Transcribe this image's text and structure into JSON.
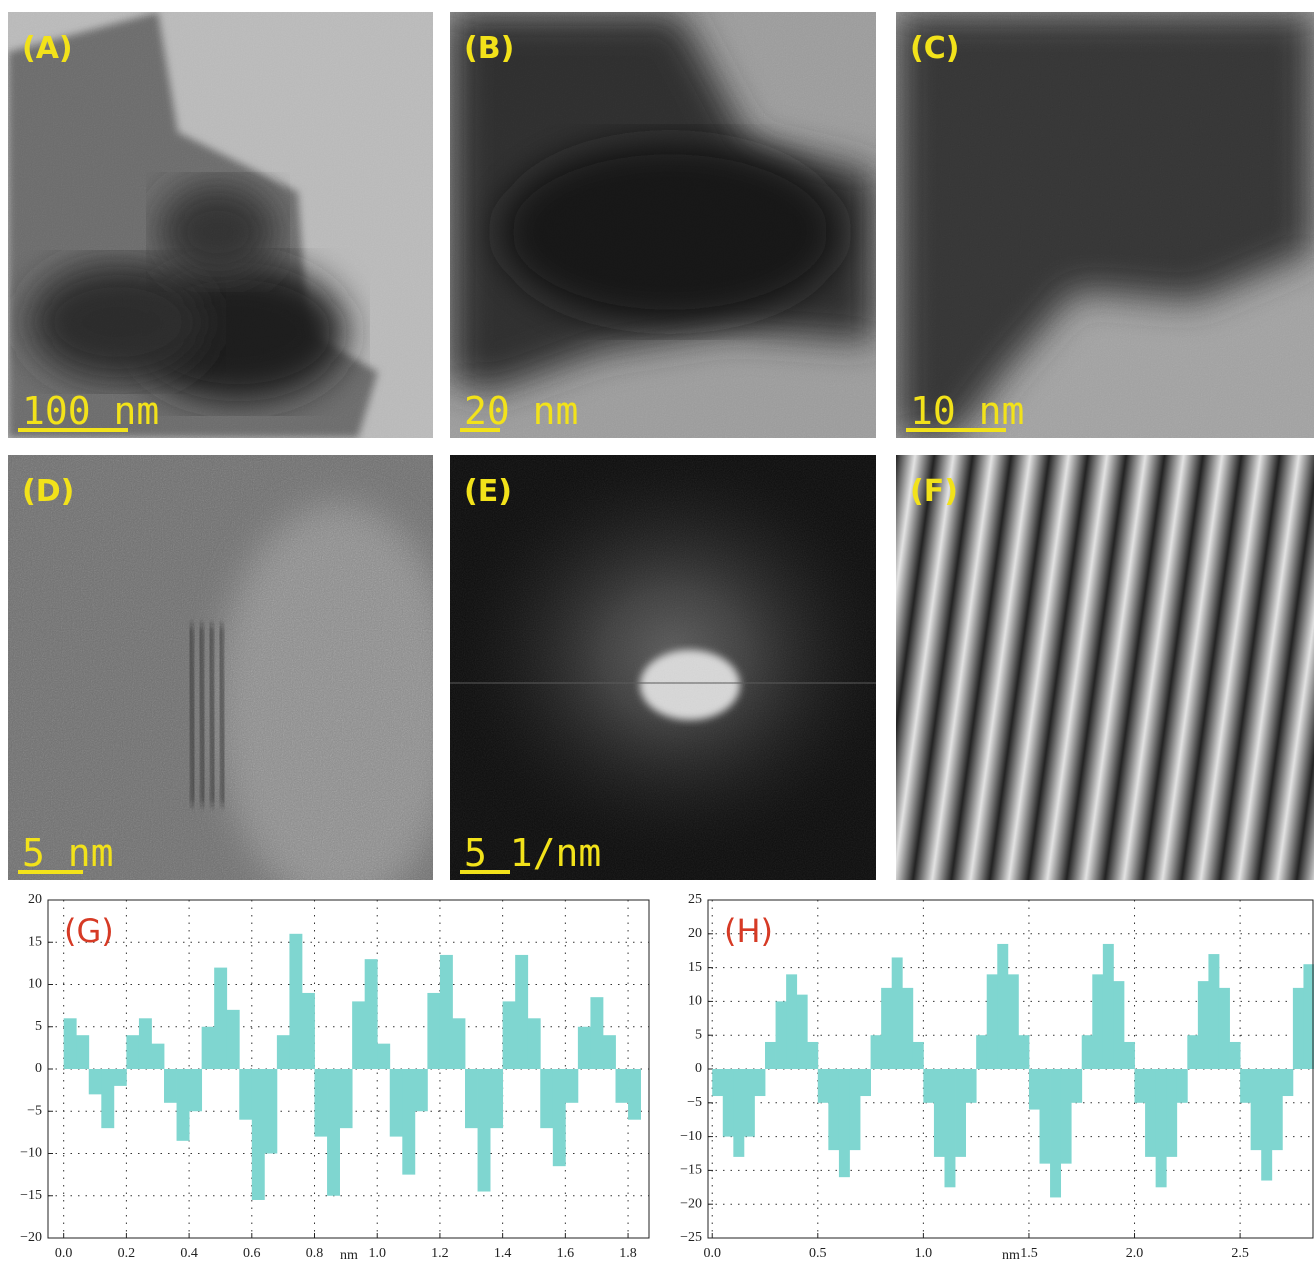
{
  "panels": [
    {
      "label": "(A)",
      "scale_bar": "100 nm"
    },
    {
      "label": "(B)",
      "scale_bar": "20 nm"
    },
    {
      "label": "(C)",
      "scale_bar": "10 nm"
    },
    {
      "label": "(D)",
      "scale_bar": "5 nm"
    },
    {
      "label": "(E)",
      "scale_bar": "5 1/nm"
    },
    {
      "label": "(F)"
    }
  ],
  "chart_data": [
    {
      "type": "histogram",
      "annotation": "(G)",
      "x_label": "nm",
      "color": "#7fd6d0",
      "grid": true,
      "bins": [
        0,
        0.04,
        0.08,
        0.12,
        0.16,
        0.2,
        0.24,
        0.28,
        0.32,
        0.36,
        0.4,
        0.44,
        0.48,
        0.52,
        0.56,
        0.6,
        0.64,
        0.68,
        0.72,
        0.76,
        0.8,
        0.84,
        0.88,
        0.92,
        0.96,
        1,
        1.04,
        1.08,
        1.12,
        1.16,
        1.2,
        1.24,
        1.28,
        1.32,
        1.36,
        1.4,
        1.44,
        1.48,
        1.52,
        1.56,
        1.6,
        1.64,
        1.68,
        1.72,
        1.76,
        1.8,
        1.84
      ],
      "values": [
        6,
        4,
        -3,
        -7,
        -2,
        4,
        6,
        3,
        -4,
        -8.5,
        -5,
        5,
        12,
        7,
        -6,
        -15.5,
        -10,
        4,
        16,
        9,
        -8,
        -15,
        -7,
        8,
        13,
        3,
        -8,
        -12.5,
        -5,
        9,
        13.5,
        6,
        -7,
        -14.5,
        -7,
        8,
        13.5,
        6,
        -7,
        -11.5,
        -4,
        5,
        8.5,
        4,
        -4,
        -6
      ],
      "xlim": [
        -0.05,
        1.87
      ],
      "xticks": [
        {
          "value": 0,
          "label": "0.0"
        },
        0.2,
        0.4,
        0.6,
        0.8,
        {
          "value": 1,
          "label": "1.0"
        },
        1.2,
        1.4,
        1.6,
        1.8
      ],
      "ylim": [
        -20,
        20
      ],
      "yticks": [
        {
          "value": -20,
          "label": "−20"
        },
        {
          "value": -15,
          "label": "−15"
        },
        {
          "value": -10,
          "label": "−10"
        },
        {
          "value": -5,
          "label": "−5"
        },
        0,
        5,
        10,
        15,
        20
      ]
    },
    {
      "type": "histogram",
      "annotation": "(H)",
      "x_label": "nm",
      "color": "#7fd6d0",
      "grid": true,
      "bins": [
        0,
        0.05,
        0.1,
        0.15,
        0.2,
        0.25,
        0.3,
        0.35,
        0.4,
        0.45,
        0.5,
        0.55,
        0.6,
        0.65,
        0.7,
        0.75,
        0.8,
        0.85,
        0.9,
        0.95,
        1,
        1.05,
        1.1,
        1.15,
        1.2,
        1.25,
        1.3,
        1.35,
        1.4,
        1.45,
        1.5,
        1.55,
        1.6,
        1.65,
        1.7,
        1.75,
        1.8,
        1.85,
        1.9,
        1.95,
        2,
        2.05,
        2.1,
        2.15,
        2.2,
        2.25,
        2.3,
        2.35,
        2.4,
        2.45,
        2.5,
        2.55,
        2.6,
        2.65,
        2.7,
        2.75,
        2.8,
        2.85
      ],
      "values": [
        -4,
        -10,
        -13,
        -10,
        -4,
        4,
        10,
        14,
        11,
        4,
        -5,
        -12,
        -16,
        -12,
        -4,
        5,
        12,
        16.5,
        12,
        4,
        -5,
        -13,
        -17.5,
        -13,
        -5,
        5,
        14,
        18.5,
        14,
        5,
        -6,
        -14,
        -19,
        -14,
        -5,
        5,
        14,
        18.5,
        13,
        4,
        -5,
        -13,
        -17.5,
        -13,
        -5,
        5,
        13,
        17,
        12,
        4,
        -5,
        -12,
        -16.5,
        -12,
        -4,
        12,
        15.5
      ],
      "xlim": [
        -0.02,
        2.85
      ],
      "xticks": [
        {
          "value": 0,
          "label": "0.0"
        },
        0.5,
        {
          "value": 1,
          "label": "1.0"
        },
        1.5,
        {
          "value": 2,
          "label": "2.0"
        },
        2.5
      ],
      "ylim": [
        -25,
        25
      ],
      "yticks": [
        {
          "value": -25,
          "label": "−25"
        },
        {
          "value": -20,
          "label": "−20"
        },
        {
          "value": -15,
          "label": "−15"
        },
        {
          "value": -10,
          "label": "−10"
        },
        {
          "value": -5,
          "label": "−5"
        },
        0,
        5,
        10,
        15,
        20,
        25
      ]
    }
  ]
}
